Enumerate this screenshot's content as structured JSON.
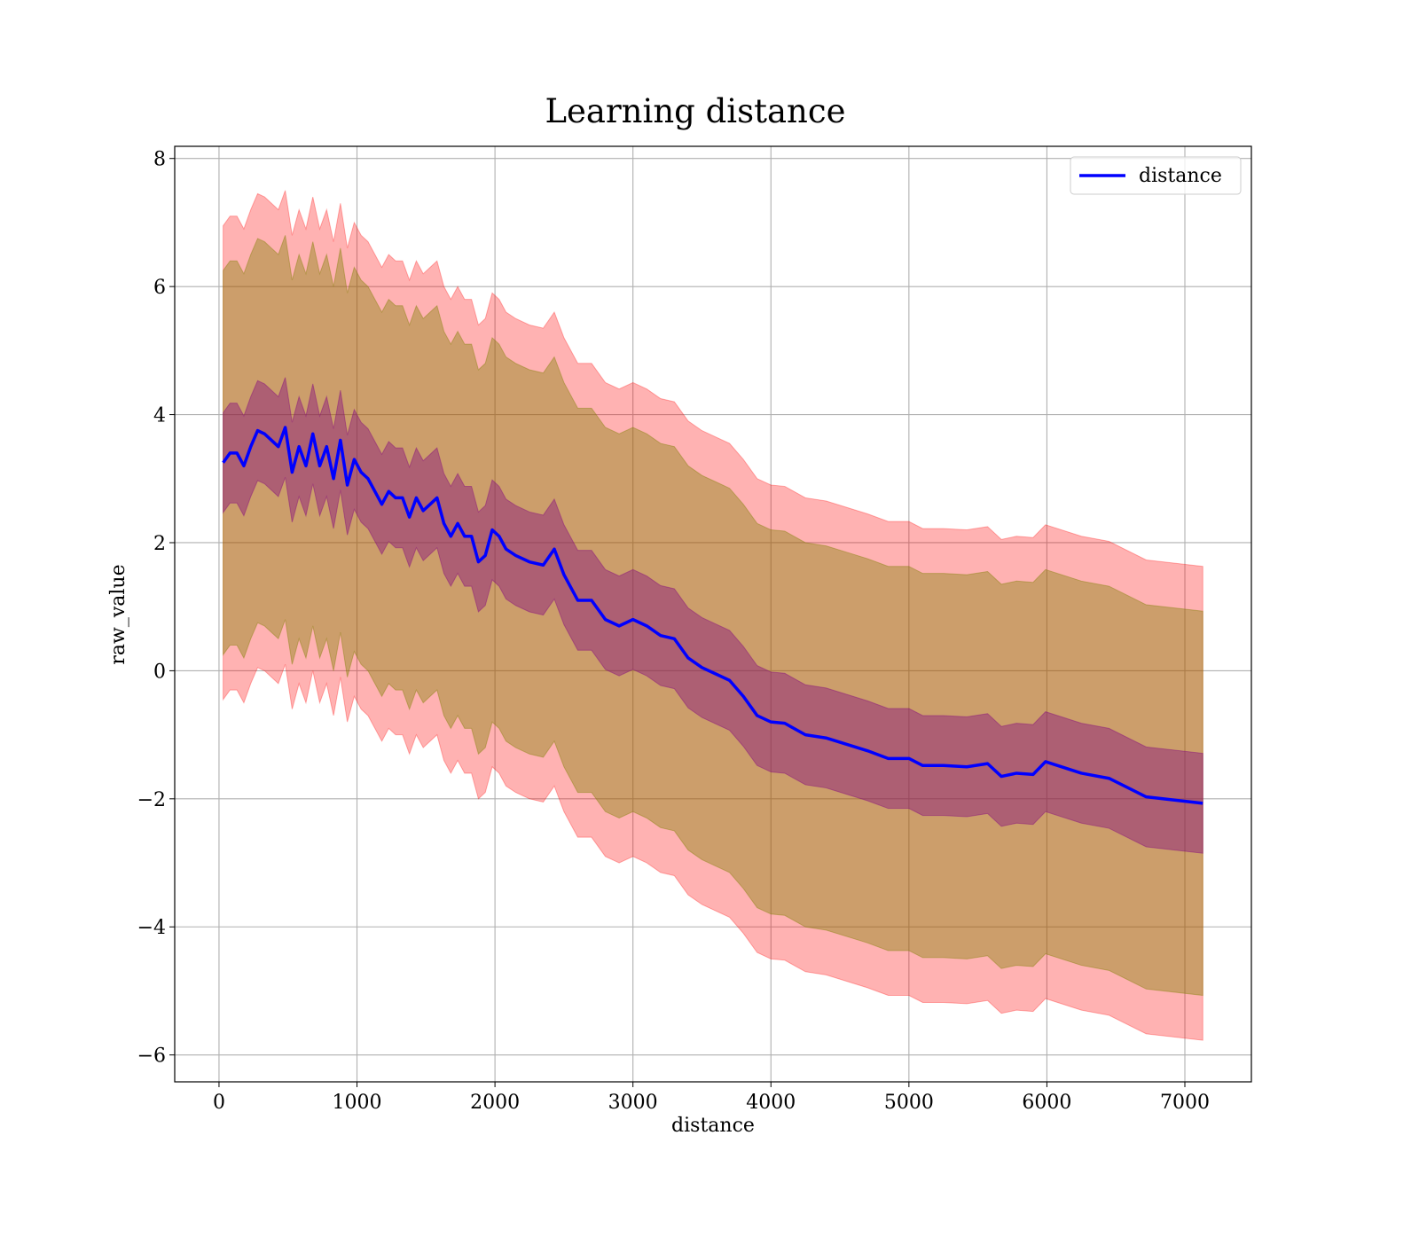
{
  "chart_data": {
    "type": "line",
    "title": "Learning distance",
    "x_label": "distance",
    "y_label": "raw_value",
    "x": [
      30,
      80,
      130,
      180,
      230,
      280,
      330,
      380,
      430,
      480,
      530,
      580,
      630,
      680,
      730,
      780,
      830,
      880,
      930,
      980,
      1030,
      1080,
      1130,
      1180,
      1230,
      1280,
      1330,
      1380,
      1430,
      1480,
      1530,
      1580,
      1630,
      1680,
      1730,
      1780,
      1830,
      1880,
      1930,
      1980,
      2030,
      2080,
      2150,
      2250,
      2350,
      2430,
      2500,
      2600,
      2700,
      2800,
      2900,
      3000,
      3100,
      3200,
      3300,
      3400,
      3500,
      3600,
      3700,
      3800,
      3900,
      4000,
      4100,
      4250,
      4400,
      4550,
      4700,
      4850,
      5000,
      5100,
      5250,
      5420,
      5570,
      5670,
      5780,
      5900,
      5990,
      6250,
      6450,
      6720,
      7130
    ],
    "series": [
      {
        "name": "distance",
        "color": "#0000ff",
        "values": [
          3.25,
          3.4,
          3.4,
          3.2,
          3.5,
          3.75,
          3.7,
          3.6,
          3.5,
          3.8,
          3.1,
          3.5,
          3.2,
          3.7,
          3.2,
          3.5,
          3.0,
          3.6,
          2.9,
          3.3,
          3.1,
          3.0,
          2.8,
          2.6,
          2.8,
          2.7,
          2.7,
          2.4,
          2.7,
          2.5,
          2.6,
          2.7,
          2.3,
          2.1,
          2.3,
          2.1,
          2.1,
          1.7,
          1.8,
          2.2,
          2.1,
          1.9,
          1.8,
          1.7,
          1.65,
          1.9,
          1.5,
          1.1,
          1.1,
          0.8,
          0.7,
          0.8,
          0.7,
          0.55,
          0.5,
          0.2,
          0.05,
          -0.05,
          -0.15,
          -0.4,
          -0.7,
          -0.8,
          -0.82,
          -1.0,
          -1.05,
          -1.15,
          -1.25,
          -1.37,
          -1.37,
          -1.48,
          -1.48,
          -1.5,
          -1.45,
          -1.65,
          -1.6,
          -1.62,
          -1.42,
          -1.6,
          -1.68,
          -1.97,
          -2.07
        ]
      }
    ],
    "bands": [
      {
        "color": "#ff0000",
        "opacity": 0.3,
        "half_width": 3.7
      },
      {
        "color": "#808000",
        "opacity": 0.4,
        "half_width": 3.0
      },
      {
        "color": "#800080",
        "opacity": 0.4,
        "half_width": 0.78
      }
    ],
    "xlim": [
      -321,
      7482
    ],
    "ylim": [
      -6.42,
      8.19
    ],
    "xticks": [
      0,
      1000,
      2000,
      3000,
      4000,
      5000,
      6000,
      7000
    ],
    "yticks": [
      {
        "value": -6,
        "label": "−6"
      },
      {
        "value": -4,
        "label": "−4"
      },
      {
        "value": -2,
        "label": "−2"
      },
      0,
      2,
      4,
      6,
      8
    ],
    "grid": true,
    "legend": "upper right"
  }
}
